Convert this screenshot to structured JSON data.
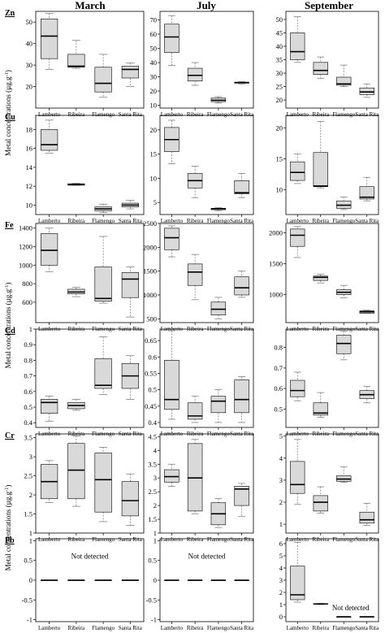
{
  "columns": [
    "March",
    "July",
    "September"
  ],
  "ylabel_parts": [
    "Metal concentrations (µg.g",
    "-1",
    ")"
  ],
  "categories": [
    "Lamberto",
    "Ribeira",
    "Flamengo",
    "Santa Rita"
  ],
  "colors": {
    "box_fill": "#d9d9d9",
    "median": "#000000",
    "frame": "#000000",
    "whisker": "#808080"
  },
  "chart_data": [
    {
      "type": "box",
      "metal": "Zn",
      "month": "March",
      "ylim": [
        10,
        55
      ],
      "yticks": [
        20,
        30,
        40,
        50
      ],
      "boxes": [
        {
          "lo": 28,
          "q1": 33,
          "med": 43.5,
          "q3": 51.5,
          "hi": 54
        },
        {
          "lo": 28.5,
          "q1": 29,
          "med": 29.5,
          "q3": 35,
          "hi": 41.5
        },
        {
          "lo": 15,
          "q1": 17.5,
          "med": 21.5,
          "q3": 29,
          "hi": 35
        },
        {
          "lo": 20,
          "q1": 24,
          "med": 28,
          "q3": 29.5,
          "hi": 31
        }
      ]
    },
    {
      "type": "box",
      "metal": "Zn",
      "month": "July",
      "ylim": [
        8,
        76
      ],
      "yticks": [
        10,
        20,
        30,
        40,
        50,
        60,
        70
      ],
      "boxes": [
        {
          "lo": 38,
          "q1": 47,
          "med": 58,
          "q3": 67,
          "hi": 73
        },
        {
          "lo": 24,
          "q1": 27,
          "med": 31,
          "q3": 36,
          "hi": 40
        },
        {
          "lo": 11.5,
          "q1": 12.5,
          "med": 13.5,
          "q3": 15,
          "hi": 16
        },
        {
          "lo": 25,
          "q1": 25.5,
          "med": 26,
          "q3": 26,
          "hi": 26.5
        }
      ]
    },
    {
      "type": "box",
      "metal": "Zn",
      "month": "September",
      "ylim": [
        17,
        53
      ],
      "yticks": [
        20,
        25,
        30,
        35,
        40,
        45,
        50
      ],
      "boxes": [
        {
          "lo": 34,
          "q1": 35,
          "med": 38,
          "q3": 45,
          "hi": 51
        },
        {
          "lo": 28,
          "q1": 29.5,
          "med": 31,
          "q3": 34,
          "hi": 36
        },
        {
          "lo": 25,
          "q1": 25.5,
          "med": 26,
          "q3": 28.5,
          "hi": 33
        },
        {
          "lo": 21,
          "q1": 22,
          "med": 23,
          "q3": 24.5,
          "hi": 26
        }
      ]
    },
    {
      "type": "box",
      "metal": "Cu",
      "month": "March",
      "ylim": [
        9,
        19.5
      ],
      "yticks": [
        10,
        12,
        14,
        16,
        18
      ],
      "boxes": [
        {
          "lo": 15.5,
          "q1": 15.8,
          "med": 16.4,
          "q3": 18,
          "hi": 19
        },
        {
          "lo": 12.1,
          "q1": 12.1,
          "med": 12.2,
          "q3": 12.25,
          "hi": 12.3
        },
        {
          "lo": 9.2,
          "q1": 9.4,
          "med": 9.6,
          "q3": 9.8,
          "hi": 10.1
        },
        {
          "lo": 9.6,
          "q1": 9.8,
          "med": 10,
          "q3": 10.2,
          "hi": 10.5
        }
      ]
    },
    {
      "type": "box",
      "metal": "Cu",
      "month": "July",
      "ylim": [
        2.5,
        23
      ],
      "yticks": [
        5,
        10,
        15,
        20
      ],
      "boxes": [
        {
          "lo": 13,
          "q1": 15.5,
          "med": 18,
          "q3": 20.5,
          "hi": 22
        },
        {
          "lo": 6,
          "q1": 8,
          "med": 9.5,
          "q3": 11,
          "hi": 12.5
        },
        {
          "lo": 3.3,
          "q1": 3.5,
          "med": 3.7,
          "q3": 3.8,
          "hi": 3.9
        },
        {
          "lo": 6,
          "q1": 6.8,
          "med": 7,
          "q3": 9.5,
          "hi": 11
        }
      ]
    },
    {
      "type": "box",
      "metal": "Cu",
      "month": "September",
      "ylim": [
        6,
        22
      ],
      "yticks": [
        10,
        15,
        20
      ],
      "boxes": [
        {
          "lo": 11,
          "q1": 11.5,
          "med": 12.8,
          "q3": 14.5,
          "hi": 15.8
        },
        {
          "lo": 10.3,
          "q1": 10.5,
          "med": 10.6,
          "q3": 16,
          "hi": 21
        },
        {
          "lo": 6.8,
          "q1": 7,
          "med": 7.5,
          "q3": 8.2,
          "hi": 8.8
        },
        {
          "lo": 8.2,
          "q1": 8.5,
          "med": 8.8,
          "q3": 10.5,
          "hi": 12
        }
      ]
    },
    {
      "type": "box",
      "metal": "Fe",
      "month": "March",
      "ylim": [
        380,
        1450
      ],
      "yticks": [
        600,
        800,
        1000,
        1200,
        1400
      ],
      "boxes": [
        {
          "lo": 930,
          "q1": 1000,
          "med": 1160,
          "q3": 1340,
          "hi": 1400
        },
        {
          "lo": 660,
          "q1": 690,
          "med": 710,
          "q3": 740,
          "hi": 760
        },
        {
          "lo": 590,
          "q1": 610,
          "med": 640,
          "q3": 980,
          "hi": 1310
        },
        {
          "lo": 440,
          "q1": 650,
          "med": 850,
          "q3": 920,
          "hi": 980
        }
      ]
    },
    {
      "type": "box",
      "metal": "Fe",
      "month": "July",
      "ylim": [
        420,
        2500
      ],
      "yticks": [
        500,
        1000,
        1500,
        2000,
        2500
      ],
      "boxes": [
        {
          "lo": 1800,
          "q1": 1950,
          "med": 2200,
          "q3": 2400,
          "hi": 2450
        },
        {
          "lo": 900,
          "q1": 1200,
          "med": 1480,
          "q3": 1650,
          "hi": 1850
        },
        {
          "lo": 500,
          "q1": 580,
          "med": 700,
          "q3": 850,
          "hi": 950
        },
        {
          "lo": 950,
          "q1": 1000,
          "med": 1150,
          "q3": 1380,
          "hi": 1500
        }
      ]
    },
    {
      "type": "box",
      "metal": "Fe",
      "month": "September",
      "ylim": [
        550,
        2150
      ],
      "yticks": [
        500,
        1000,
        1500,
        2000
      ],
      "boxes": [
        {
          "lo": 1600,
          "q1": 1780,
          "med": 1960,
          "q3": 2060,
          "hi": 2100
        },
        {
          "lo": 1190,
          "q1": 1230,
          "med": 1280,
          "q3": 1300,
          "hi": 1330
        },
        {
          "lo": 950,
          "q1": 1000,
          "med": 1040,
          "q3": 1080,
          "hi": 1150
        },
        {
          "lo": 700,
          "q1": 700,
          "med": 725,
          "q3": 740,
          "hi": 750
        }
      ]
    },
    {
      "type": "box",
      "metal": "Cd",
      "month": "March",
      "ylim": [
        0.37,
        1.0
      ],
      "yticks": [
        0.4,
        0.5,
        0.6,
        0.7,
        0.8,
        0.9,
        1.0
      ],
      "boxes": [
        {
          "lo": 0.41,
          "q1": 0.46,
          "med": 0.53,
          "q3": 0.55,
          "hi": 0.57
        },
        {
          "lo": 0.48,
          "q1": 0.49,
          "med": 0.51,
          "q3": 0.53,
          "hi": 0.55
        },
        {
          "lo": 0.58,
          "q1": 0.62,
          "med": 0.64,
          "q3": 0.81,
          "hi": 0.95
        },
        {
          "lo": 0.55,
          "q1": 0.62,
          "med": 0.7,
          "q3": 0.78,
          "hi": 0.83
        }
      ]
    },
    {
      "type": "box",
      "metal": "Cd",
      "month": "July",
      "ylim": [
        0.385,
        0.685
      ],
      "yticks": [
        0.4,
        0.45,
        0.5,
        0.55,
        0.6,
        0.65
      ],
      "boxes": [
        {
          "lo": 0.41,
          "q1": 0.44,
          "med": 0.47,
          "q3": 0.59,
          "hi": 0.68
        },
        {
          "lo": 0.4,
          "q1": 0.41,
          "med": 0.42,
          "q3": 0.46,
          "hi": 0.48
        },
        {
          "lo": 0.4,
          "q1": 0.43,
          "med": 0.465,
          "q3": 0.48,
          "hi": 0.5
        },
        {
          "lo": 0.4,
          "q1": 0.43,
          "med": 0.47,
          "q3": 0.53,
          "hi": 0.54
        }
      ]
    },
    {
      "type": "box",
      "metal": "Cd",
      "month": "September",
      "ylim": [
        0.41,
        0.89
      ],
      "yticks": [
        0.5,
        0.6,
        0.7,
        0.8
      ],
      "boxes": [
        {
          "lo": 0.54,
          "q1": 0.56,
          "med": 0.59,
          "q3": 0.64,
          "hi": 0.68
        },
        {
          "lo": 0.46,
          "q1": 0.47,
          "med": 0.48,
          "q3": 0.53,
          "hi": 0.58
        },
        {
          "lo": 0.74,
          "q1": 0.77,
          "med": 0.82,
          "q3": 0.86,
          "hi": 0.88
        },
        {
          "lo": 0.53,
          "q1": 0.55,
          "med": 0.57,
          "q3": 0.59,
          "hi": 0.61
        }
      ]
    },
    {
      "type": "box",
      "metal": "Cr",
      "month": "March",
      "ylim": [
        1.0,
        3.6
      ],
      "yticks": [
        1.0,
        1.5,
        2.0,
        2.5,
        3.0,
        3.5
      ],
      "boxes": [
        {
          "lo": 1.8,
          "q1": 1.9,
          "med": 2.35,
          "q3": 2.8,
          "hi": 2.9
        },
        {
          "lo": 1.7,
          "q1": 1.9,
          "med": 2.65,
          "q3": 3.35,
          "hi": 3.55
        },
        {
          "lo": 1.3,
          "q1": 1.55,
          "med": 2.4,
          "q3": 3.1,
          "hi": 3.25
        },
        {
          "lo": 1.2,
          "q1": 1.45,
          "med": 1.85,
          "q3": 2.35,
          "hi": 2.55
        }
      ]
    },
    {
      "type": "box",
      "metal": "Cr",
      "month": "July",
      "ylim": [
        1.0,
        4.6
      ],
      "yticks": [
        1.0,
        1.5,
        2.0,
        2.5,
        3.0,
        3.5,
        4.0,
        4.5
      ],
      "boxes": [
        {
          "lo": 2.7,
          "q1": 2.85,
          "med": 3.05,
          "q3": 3.3,
          "hi": 3.5
        },
        {
          "lo": 1.7,
          "q1": 1.8,
          "med": 3.0,
          "q3": 4.25,
          "hi": 4.4
        },
        {
          "lo": 1.2,
          "q1": 1.3,
          "med": 1.7,
          "q3": 2.1,
          "hi": 2.25
        },
        {
          "lo": 1.6,
          "q1": 2.0,
          "med": 2.6,
          "q3": 2.7,
          "hi": 2.8
        }
      ]
    },
    {
      "type": "box",
      "metal": "Cr",
      "month": "September",
      "ylim": [
        0.6,
        5.1
      ],
      "yticks": [
        1,
        2,
        3,
        4,
        5
      ],
      "boxes": [
        {
          "lo": 1.9,
          "q1": 2.4,
          "med": 2.8,
          "q3": 3.85,
          "hi": 4.85
        },
        {
          "lo": 1.5,
          "q1": 1.6,
          "med": 2.0,
          "q3": 2.3,
          "hi": 2.7
        },
        {
          "lo": 2.9,
          "q1": 2.95,
          "med": 3.05,
          "q3": 3.2,
          "hi": 3.6
        },
        {
          "lo": 0.95,
          "q1": 1.05,
          "med": 1.2,
          "q3": 1.55,
          "hi": 1.95
        }
      ]
    },
    {
      "type": "box",
      "metal": "Pb",
      "month": "March",
      "ylim": [
        -1.05,
        1.05
      ],
      "yticks": [
        -1.0,
        -0.5,
        0.0,
        0.5,
        1.0
      ],
      "boxes": [
        {
          "lo": 0,
          "q1": 0,
          "med": 0,
          "q3": 0,
          "hi": 0
        },
        {
          "lo": 0,
          "q1": 0,
          "med": 0,
          "q3": 0,
          "hi": 0
        },
        {
          "lo": 0,
          "q1": 0,
          "med": 0,
          "q3": 0,
          "hi": 0
        },
        {
          "lo": 0,
          "q1": 0,
          "med": 0,
          "q3": 0,
          "hi": 0
        }
      ],
      "annotation": {
        "text": "Not detected",
        "y": 0.55
      }
    },
    {
      "type": "box",
      "metal": "Pb",
      "month": "July",
      "ylim": [
        -1.05,
        1.05
      ],
      "yticks": [
        -1.0,
        -0.5,
        0.0,
        0.5,
        1.0
      ],
      "boxes": [
        {
          "lo": 0,
          "q1": 0,
          "med": 0,
          "q3": 0,
          "hi": 0
        },
        {
          "lo": 0,
          "q1": 0,
          "med": 0,
          "q3": 0,
          "hi": 0
        },
        {
          "lo": 0,
          "q1": 0,
          "med": 0,
          "q3": 0,
          "hi": 0
        },
        {
          "lo": 0,
          "q1": 0,
          "med": 0,
          "q3": 0,
          "hi": 0
        }
      ],
      "annotation": {
        "text": "Not detected",
        "y": 0.55
      }
    },
    {
      "type": "box",
      "metal": "Pb",
      "month": "September",
      "ylim": [
        -0.4,
        6.4
      ],
      "yticks": [
        0,
        1,
        2,
        3,
        4,
        5,
        6
      ],
      "boxes": [
        {
          "lo": 1.2,
          "q1": 1.4,
          "med": 1.8,
          "q3": 4.15,
          "hi": 6.1
        },
        {
          "lo": 1.0,
          "q1": 1.02,
          "med": 1.05,
          "q3": 1.08,
          "hi": 1.1
        },
        {
          "lo": 0,
          "q1": 0,
          "med": 0,
          "q3": 0,
          "hi": 0
        },
        {
          "lo": 0,
          "q1": 0,
          "med": 0,
          "q3": 0,
          "hi": 0
        }
      ],
      "annotation": {
        "text": "Not detected",
        "y": 0.55
      }
    }
  ]
}
